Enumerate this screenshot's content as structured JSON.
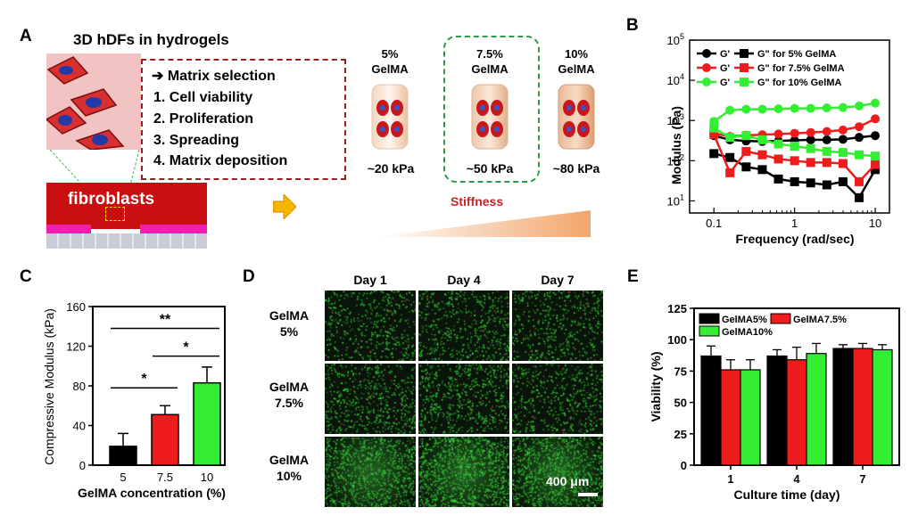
{
  "panels": {
    "A": {
      "letter": "A",
      "title": "3D hDFs in hydrogels",
      "box_header": "➔ Matrix selection",
      "box_items": [
        "1.  Cell viability",
        "2.  Proliferation",
        "3.  Spreading",
        "4.  Matrix deposition"
      ],
      "fibroblasts_label": "fibroblasts",
      "gels": [
        {
          "name_line1": "5%",
          "name_line2": "GelMA",
          "stiffness": "~20 kPa",
          "highlighted": false
        },
        {
          "name_line1": "7.5%",
          "name_line2": "GelMA",
          "stiffness": "~50 kPa",
          "highlighted": true
        },
        {
          "name_line1": "10%",
          "name_line2": "GelMA",
          "stiffness": "~80 kPa",
          "highlighted": false
        }
      ],
      "stiffness_label": "Stiffness",
      "colors": {
        "box_border": "#a01c1c",
        "highlight": "#2a9d46",
        "stiffness_text": "#c0262a",
        "arrow": "#f7b500"
      }
    },
    "B": {
      "letter": "B"
    },
    "C": {
      "letter": "C"
    },
    "D": {
      "letter": "D",
      "days": [
        "Day 1",
        "Day 4",
        "Day 7"
      ],
      "rows": [
        {
          "line1": "GelMA",
          "line2": "5%"
        },
        {
          "line1": "GelMA",
          "line2": "7.5%"
        },
        {
          "line1": "GelMA",
          "line2": "10%"
        }
      ],
      "scale_bar": "400 μm"
    },
    "E": {
      "letter": "E"
    }
  },
  "chart_data": [
    {
      "panel": "B",
      "type": "line",
      "xlabel": "Frequency (rad/sec)",
      "ylabel": "Modulus (Pa)",
      "x_scale": "log",
      "y_scale": "log",
      "xlim": [
        0.05,
        15
      ],
      "ylim": [
        5,
        100000
      ],
      "x_ticks": [
        {
          "v": 0.1,
          "label": "0.1"
        },
        {
          "v": 1,
          "label": "1"
        },
        {
          "v": 10,
          "label": "10"
        }
      ],
      "y_ticks": [
        {
          "v": 10,
          "base": "10",
          "exp": "1"
        },
        {
          "v": 100,
          "base": "10",
          "exp": "2"
        },
        {
          "v": 1000,
          "base": "10",
          "exp": "3"
        },
        {
          "v": 10000,
          "base": "10",
          "exp": "4"
        },
        {
          "v": 100000,
          "base": "10",
          "exp": "5"
        }
      ],
      "legend": [
        {
          "gp_label": "G'",
          "gpp_label": "G\" for 5% GelMA",
          "color": "#000000"
        },
        {
          "gp_label": "G'",
          "gpp_label": "G\" for 7.5% GelMA",
          "color": "#ee1c1c"
        },
        {
          "gp_label": "G'",
          "gpp_label": "G\" for 10% GelMA",
          "color": "#33ee33"
        }
      ],
      "x": [
        0.1,
        0.158,
        0.251,
        0.398,
        0.631,
        1.0,
        1.585,
        2.512,
        3.981,
        6.31,
        10.0
      ],
      "series": [
        {
          "group": "5% GelMA",
          "modulus": "G'",
          "marker": "circle",
          "color": "#000000",
          "values": [
            420,
            330,
            310,
            300,
            310,
            320,
            330,
            330,
            340,
            380,
            420
          ]
        },
        {
          "group": "5% GelMA",
          "modulus": "G\"",
          "marker": "square",
          "color": "#000000",
          "values": [
            150,
            120,
            70,
            60,
            35,
            30,
            28,
            25,
            30,
            12,
            60
          ]
        },
        {
          "group": "7.5% GelMA",
          "modulus": "G'",
          "marker": "circle",
          "color": "#ee1c1c",
          "values": [
            480,
            400,
            430,
            440,
            460,
            480,
            500,
            530,
            580,
            700,
            1100
          ]
        },
        {
          "group": "7.5% GelMA",
          "modulus": "G\"",
          "marker": "square",
          "color": "#ee1c1c",
          "values": [
            450,
            50,
            170,
            140,
            110,
            100,
            90,
            90,
            85,
            30,
            80
          ]
        },
        {
          "group": "10% GelMA",
          "modulus": "G'",
          "marker": "circle",
          "color": "#33ee33",
          "values": [
            950,
            1800,
            1900,
            1900,
            1950,
            2000,
            2000,
            2050,
            2100,
            2300,
            2700
          ]
        },
        {
          "group": "10% GelMA",
          "modulus": "G\"",
          "marker": "square",
          "color": "#33ee33",
          "values": [
            650,
            380,
            420,
            330,
            260,
            230,
            200,
            170,
            160,
            140,
            130
          ]
        }
      ]
    },
    {
      "panel": "C",
      "type": "bar",
      "xlabel": "GelMA concentration (%)",
      "ylabel": "Compressive Modulus (kPa)",
      "categories": [
        "5",
        "7.5",
        "10"
      ],
      "values": [
        19,
        51,
        83
      ],
      "errors": [
        13,
        9,
        16
      ],
      "colors": [
        "#000000",
        "#ee1c1c",
        "#33ee33"
      ],
      "ylim": [
        0,
        160
      ],
      "y_ticks": [
        0,
        40,
        80,
        120,
        160
      ],
      "significance": [
        {
          "from": 0,
          "to": 2,
          "label": "**",
          "level": 138
        },
        {
          "from": 1,
          "to": 2,
          "label": "*",
          "level": 110
        },
        {
          "from": 0,
          "to": 1,
          "label": "*",
          "level": 78
        }
      ]
    },
    {
      "panel": "E",
      "type": "bar",
      "xlabel": "Culture time (day)",
      "ylabel": "Viability (%)",
      "categories": [
        "1",
        "4",
        "7"
      ],
      "ylim": [
        0,
        125
      ],
      "y_ticks": [
        0,
        25,
        50,
        75,
        100,
        125
      ],
      "legend_position": "top-left",
      "series": [
        {
          "name": "GelMA5%",
          "color": "#000000",
          "values": [
            87,
            87,
            93
          ],
          "errors": [
            8,
            5,
            3
          ]
        },
        {
          "name": "GelMA7.5%",
          "color": "#ee1c1c",
          "values": [
            76,
            84,
            93
          ],
          "errors": [
            8,
            10,
            4
          ]
        },
        {
          "name": "GelMA10%",
          "color": "#33ee33",
          "values": [
            76,
            89,
            92
          ],
          "errors": [
            8,
            8,
            4
          ]
        }
      ]
    }
  ]
}
